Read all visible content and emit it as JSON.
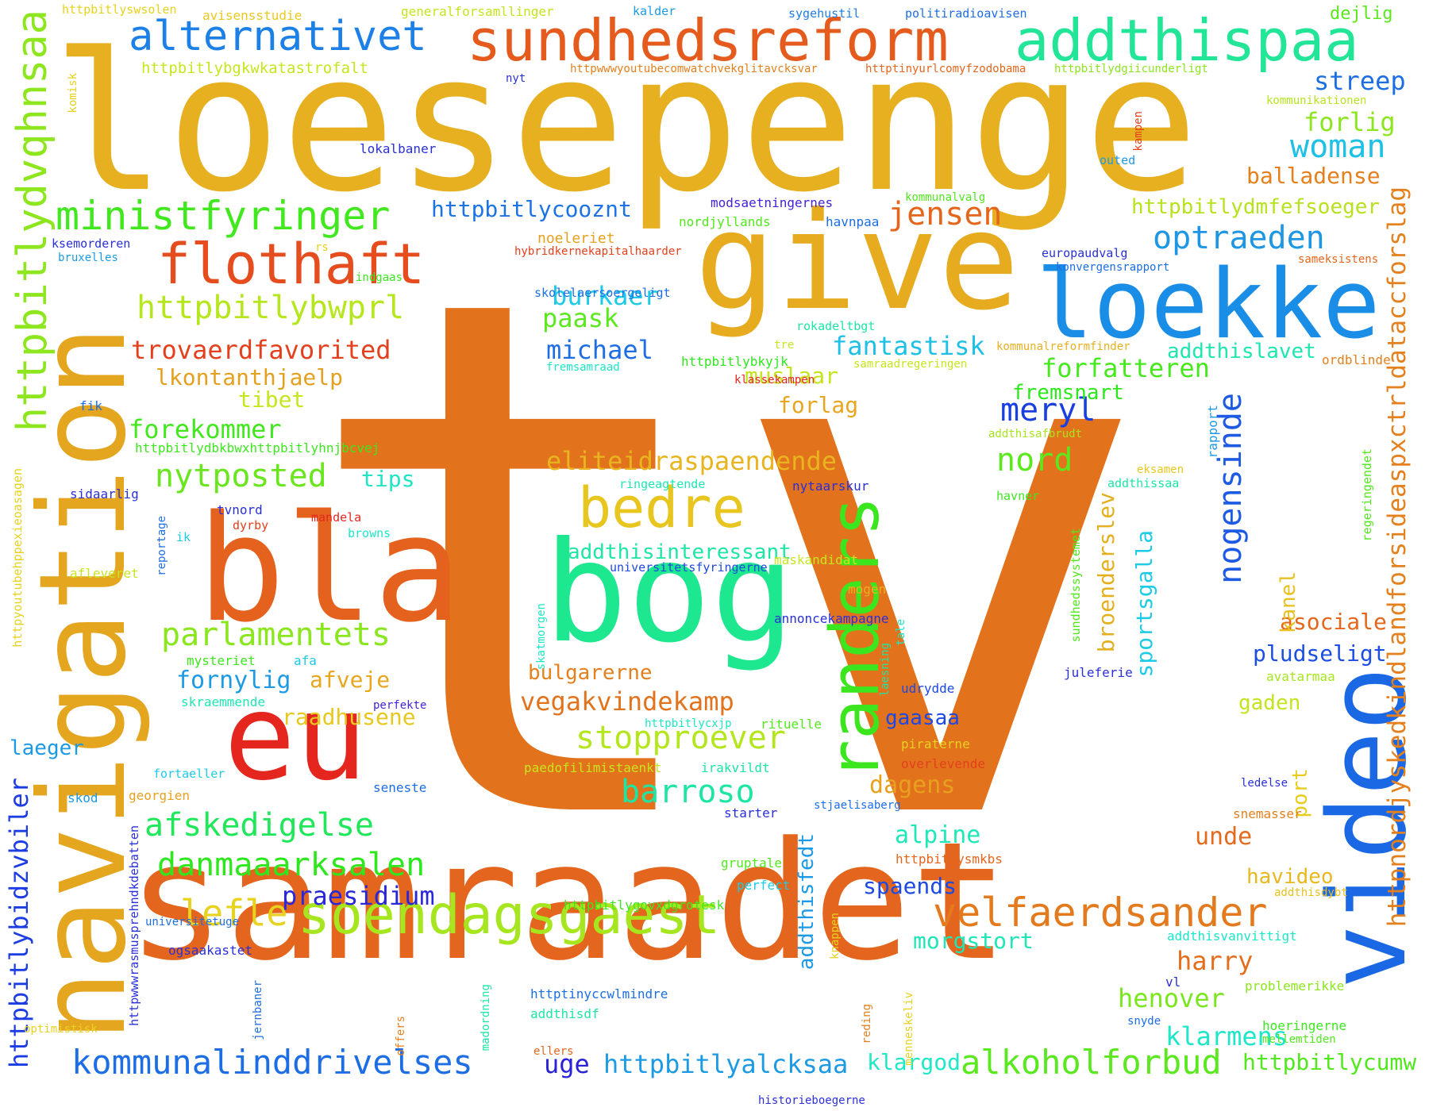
{
  "words": [
    {
      "text": "tv",
      "color": "#e2721c",
      "vertical": false
    },
    {
      "text": "loesepenge",
      "color": "#e6b020",
      "vertical": false
    },
    {
      "text": "samraadet",
      "color": "#e4651d",
      "vertical": false
    },
    {
      "text": "navigation",
      "color": "#e4a51f",
      "vertical": true
    },
    {
      "text": "video",
      "color": "#1a68e4",
      "vertical": true
    },
    {
      "text": "give",
      "color": "#e6ab1f",
      "vertical": false
    },
    {
      "text": "bog",
      "color": "#1ee88f",
      "vertical": false
    },
    {
      "text": "bla",
      "color": "#e4621d",
      "vertical": false
    },
    {
      "text": "eu",
      "color": "#e4261f",
      "vertical": false
    },
    {
      "text": "loekke",
      "color": "#1a8ee6",
      "vertical": false
    },
    {
      "text": "randers",
      "color": "#3ce61e",
      "vertical": true
    },
    {
      "text": "sundhedsreform",
      "color": "#e55b1e",
      "vertical": false
    },
    {
      "text": "addthispaa",
      "color": "#22e597",
      "vertical": false
    },
    {
      "text": "flothaft",
      "color": "#e54d1f",
      "vertical": false
    },
    {
      "text": "alternativet",
      "color": "#1d80e6",
      "vertical": false
    },
    {
      "text": "httpbitlydvqhnsaa",
      "color": "#8de61e",
      "vertical": true
    },
    {
      "text": "ministfyringer",
      "color": "#42e81e",
      "vertical": false
    },
    {
      "text": "soendagsgaest",
      "color": "#a6e61e",
      "vertical": false
    },
    {
      "text": "bedre",
      "color": "#e8c51f",
      "vertical": false
    },
    {
      "text": "velfaerdsander",
      "color": "#e37b1e",
      "vertical": false
    },
    {
      "text": "httpnordjyskedkindlandforsideaspxctrldataccforslag",
      "color": "#e4811e",
      "vertical": true
    },
    {
      "text": "alkoholforbud",
      "color": "#5ae81e",
      "vertical": false
    },
    {
      "text": "kommunalinddrivelses",
      "color": "#1d6ee4",
      "vertical": false
    },
    {
      "text": "httpbitlybwprl",
      "color": "#b6e61e",
      "vertical": false
    },
    {
      "text": "jensen",
      "color": "#e4661d",
      "vertical": false
    },
    {
      "text": "optraeden",
      "color": "#1d96e4",
      "vertical": false
    },
    {
      "text": "woman",
      "color": "#1ec0e6",
      "vertical": false
    },
    {
      "text": "parlamentets",
      "color": "#8ae61e",
      "vertical": false
    },
    {
      "text": "danmaaarksalen",
      "color": "#2ee81e",
      "vertical": false
    },
    {
      "text": "afskedigelse",
      "color": "#1ee85a",
      "vertical": false
    },
    {
      "text": "nytposted",
      "color": "#6ae61e",
      "vertical": false
    },
    {
      "text": "lefle",
      "color": "#e6d21f",
      "vertical": false
    },
    {
      "text": "trovaerdfavorited",
      "color": "#e4401d",
      "vertical": false
    },
    {
      "text": "httpbitlybidzvbiler",
      "color": "#1d3de4",
      "vertical": true
    },
    {
      "text": "stopproever",
      "color": "#b4e61e",
      "vertical": false
    },
    {
      "text": "barroso",
      "color": "#1ee6a2",
      "vertical": false
    },
    {
      "text": "meryl",
      "color": "#1a3fe0",
      "vertical": false
    },
    {
      "text": "nord",
      "color": "#5ce81e",
      "vertical": false
    },
    {
      "text": "nogensinde",
      "color": "#1d5be4",
      "vertical": true
    },
    {
      "text": "forfatteren",
      "color": "#46e81e",
      "vertical": false
    },
    {
      "text": "eliteidraspaendende",
      "color": "#e8b41f",
      "vertical": false
    },
    {
      "text": "vegakvindekamp",
      "color": "#e2731d",
      "vertical": false
    },
    {
      "text": "harry",
      "color": "#e56e1d",
      "vertical": false
    },
    {
      "text": "henover",
      "color": "#7ae61e",
      "vertical": false
    },
    {
      "text": "klarmens",
      "color": "#1ee6c8",
      "vertical": false
    },
    {
      "text": "praesidium",
      "color": "#2a27d9",
      "vertical": false
    },
    {
      "text": "httpbitlyalcksaa",
      "color": "#1d9ae4",
      "vertical": false
    },
    {
      "text": "httpbitlycumw",
      "color": "#52e81e",
      "vertical": false
    },
    {
      "text": "uge",
      "color": "#2922d8",
      "vertical": false
    },
    {
      "text": "klargod",
      "color": "#1ee8c8",
      "vertical": false
    },
    {
      "text": "httpbitlycooznt",
      "color": "#1d73e4",
      "vertical": false
    },
    {
      "text": "burkaer",
      "color": "#1ecbe6",
      "vertical": false
    },
    {
      "text": "paask",
      "color": "#5ce81e",
      "vertical": false
    },
    {
      "text": "michael",
      "color": "#1d6ee4",
      "vertical": false
    },
    {
      "text": "fantastisk",
      "color": "#1ec0e6",
      "vertical": false
    },
    {
      "text": "muslaar",
      "color": "#c4e41e",
      "vertical": false
    },
    {
      "text": "forlag",
      "color": "#e8a61f",
      "vertical": false
    },
    {
      "text": "fremsnart",
      "color": "#2ee81e",
      "vertical": false
    },
    {
      "text": "addthislavet",
      "color": "#1ee6b0",
      "vertical": false
    },
    {
      "text": "streep",
      "color": "#1d6ee4",
      "vertical": false
    },
    {
      "text": "forlig",
      "color": "#8ce61e",
      "vertical": false
    },
    {
      "text": "balladense",
      "color": "#e4801d",
      "vertical": false
    },
    {
      "text": "httpbitlydmfefsoeger",
      "color": "#b6e21e",
      "vertical": false
    },
    {
      "text": "forekommer",
      "color": "#42e81e",
      "vertical": false
    },
    {
      "text": "tibet",
      "color": "#c6e61e",
      "vertical": false
    },
    {
      "text": "lkontanthjaelp",
      "color": "#e4a01f",
      "vertical": false
    },
    {
      "text": "httpbitlydbkbwxhttpbitlyhnjbcvej",
      "color": "#3ce81e",
      "vertical": false
    },
    {
      "text": "tips",
      "color": "#1ee6c4",
      "vertical": false
    },
    {
      "text": "fornylig",
      "color": "#1d9ae4",
      "vertical": false
    },
    {
      "text": "afveje",
      "color": "#e8a61f",
      "vertical": false
    },
    {
      "text": "raadhusene",
      "color": "#e6c81f",
      "vertical": false
    },
    {
      "text": "addthisinteressant",
      "color": "#1ee6a4",
      "vertical": false
    },
    {
      "text": "bulgarerne",
      "color": "#e4801d",
      "vertical": false
    },
    {
      "text": "dagens",
      "color": "#e8a01f",
      "vertical": false
    },
    {
      "text": "alpine",
      "color": "#1ee8b8",
      "vertical": false
    },
    {
      "text": "spaends",
      "color": "#1d4ae4",
      "vertical": false
    },
    {
      "text": "morgstort",
      "color": "#1ee6b6",
      "vertical": false
    },
    {
      "text": "unde",
      "color": "#e46a1d",
      "vertical": false
    },
    {
      "text": "havideo",
      "color": "#e8b81f",
      "vertical": false
    },
    {
      "text": "asociale",
      "color": "#e4661d",
      "vertical": false
    },
    {
      "text": "pludseligt",
      "color": "#1d4ee4",
      "vertical": false
    },
    {
      "text": "gaden",
      "color": "#c4e41e",
      "vertical": false
    },
    {
      "text": "gaasaa",
      "color": "#1d48e4",
      "vertical": false
    },
    {
      "text": "addthisfedt",
      "color": "#1d9ae4",
      "vertical": true
    },
    {
      "text": "broenderslev",
      "color": "#e4b01f",
      "vertical": true
    },
    {
      "text": "sportsgalla",
      "color": "#1ecbe6",
      "vertical": true
    },
    {
      "text": "kanel",
      "color": "#e8c01f",
      "vertical": true
    },
    {
      "text": "port",
      "color": "#e8cc1f",
      "vertical": true
    },
    {
      "text": "laeger",
      "color": "#1d9ae4",
      "vertical": false
    },
    {
      "text": "httpbitlyswsolen",
      "color": "#e8d21f",
      "vertical": false
    },
    {
      "text": "avisensstudie",
      "color": "#e8c81f",
      "vertical": false
    },
    {
      "text": "generalforsamllinger",
      "color": "#c6e41e",
      "vertical": false
    },
    {
      "text": "kalder",
      "color": "#1d9ae4",
      "vertical": false
    },
    {
      "text": "sygehustil",
      "color": "#1d7ee4",
      "vertical": false
    },
    {
      "text": "politiradioavisen",
      "color": "#1d6ee4",
      "vertical": false
    },
    {
      "text": "dejlig",
      "color": "#5ce81e",
      "vertical": false
    },
    {
      "text": "httpbitlybgkwkatastrofalt",
      "color": "#c6e61e",
      "vertical": false
    },
    {
      "text": "httpwwwyoutubecomwatchvekglitavcksvar",
      "color": "#e4801d",
      "vertical": false
    },
    {
      "text": "httptinyurlcomyfzodobama",
      "color": "#e4661d",
      "vertical": false
    },
    {
      "text": "httpbitlydgiicunderligt",
      "color": "#8ce61e",
      "vertical": false
    },
    {
      "text": "nyt",
      "color": "#2a30d8",
      "vertical": false
    },
    {
      "text": "komisk",
      "color": "#e6d21f",
      "vertical": true
    },
    {
      "text": "kommunikationen",
      "color": "#b6e41e",
      "vertical": false
    },
    {
      "text": "lokalbaner",
      "color": "#2a30d8",
      "vertical": false
    },
    {
      "text": "kampen",
      "color": "#e4401d",
      "vertical": true
    },
    {
      "text": "outed",
      "color": "#1d9ae4",
      "vertical": false
    },
    {
      "text": "modsaetningernes",
      "color": "#4422d8",
      "vertical": false
    },
    {
      "text": "kommunalvalg",
      "color": "#52e81e",
      "vertical": false
    },
    {
      "text": "nordjyllands",
      "color": "#52e81e",
      "vertical": false
    },
    {
      "text": "havnpaa",
      "color": "#1d6ee4",
      "vertical": false
    },
    {
      "text": "noeleriet",
      "color": "#e8a01f",
      "vertical": false
    },
    {
      "text": "hybridkernekapitalhaarder",
      "color": "#e4401d",
      "vertical": false
    },
    {
      "text": "europaudvalg",
      "color": "#2a30d8",
      "vertical": false
    },
    {
      "text": "konvergensrapport",
      "color": "#1d6ee4",
      "vertical": false
    },
    {
      "text": "sameksistens",
      "color": "#e4661d",
      "vertical": false
    },
    {
      "text": "ksemorderen",
      "color": "#2a30d8",
      "vertical": false
    },
    {
      "text": "rs",
      "color": "#e6d21f",
      "vertical": false
    },
    {
      "text": "bruxelles",
      "color": "#1d9ae4",
      "vertical": false
    },
    {
      "text": "skolelaersoergeligt",
      "color": "#1d6ee4",
      "vertical": false
    },
    {
      "text": "indgaas",
      "color": "#3ce81e",
      "vertical": false
    },
    {
      "text": "rokadeltbgt",
      "color": "#1ee6a4",
      "vertical": false
    },
    {
      "text": "tre",
      "color": "#c6e61e",
      "vertical": false
    },
    {
      "text": "kommunalreformfinder",
      "color": "#e8b01f",
      "vertical": false
    },
    {
      "text": "httpbitlybkyjk",
      "color": "#2ee81e",
      "vertical": false
    },
    {
      "text": "fremsamraad",
      "color": "#1ee6c8",
      "vertical": false
    },
    {
      "text": "samraadregeringen",
      "color": "#c6e61e",
      "vertical": false
    },
    {
      "text": "klassekampen",
      "color": "#e4261f",
      "vertical": false
    },
    {
      "text": "ordblinde",
      "color": "#e4801d",
      "vertical": false
    },
    {
      "text": "fik",
      "color": "#1d6ee4",
      "vertical": false
    },
    {
      "text": "addthisafbrudt",
      "color": "#a6e61e",
      "vertical": false
    },
    {
      "text": "rapport",
      "color": "#1d9ae4",
      "vertical": true
    },
    {
      "text": "eksamen",
      "color": "#e8c81f",
      "vertical": false
    },
    {
      "text": "regeringendet",
      "color": "#52e81e",
      "vertical": true
    },
    {
      "text": "ringeagtende",
      "color": "#1ee6b6",
      "vertical": false
    },
    {
      "text": "addthissaa",
      "color": "#1ee6a4",
      "vertical": false
    },
    {
      "text": "httpyoutubehppexieoasagen",
      "color": "#e6d21f",
      "vertical": true
    },
    {
      "text": "sidaarlig",
      "color": "#2a30d8",
      "vertical": false
    },
    {
      "text": "tvnord",
      "color": "#2a30d8",
      "vertical": false
    },
    {
      "text": "dyrby",
      "color": "#e4401d",
      "vertical": false
    },
    {
      "text": "mandela",
      "color": "#e4261f",
      "vertical": false
    },
    {
      "text": "nytaarskur",
      "color": "#2a30d8",
      "vertical": false
    },
    {
      "text": "havner",
      "color": "#3ce81e",
      "vertical": false
    },
    {
      "text": "sundhedssystemet",
      "color": "#52e81e",
      "vertical": true
    },
    {
      "text": "reportage",
      "color": "#1d6ee4",
      "vertical": true
    },
    {
      "text": "ik",
      "color": "#1ecbe6",
      "vertical": false
    },
    {
      "text": "browns",
      "color": "#1ee6c8",
      "vertical": false
    },
    {
      "text": "universitetsfyringerne",
      "color": "#1d48e4",
      "vertical": false
    },
    {
      "text": "maskandidat",
      "color": "#c6e61e",
      "vertical": false
    },
    {
      "text": "afleveret",
      "color": "#c6e61e",
      "vertical": false
    },
    {
      "text": "mogen",
      "color": "#e8b01f",
      "vertical": false
    },
    {
      "text": "annoncekampagne",
      "color": "#2a30d8",
      "vertical": false
    },
    {
      "text": "skatmorgen",
      "color": "#1ee6c4",
      "vertical": true
    },
    {
      "text": "laesning",
      "color": "#1ee6a4",
      "vertical": true
    },
    {
      "text": "tale",
      "color": "#1ee6c4",
      "vertical": true
    },
    {
      "text": "mysteriet",
      "color": "#3ce81e",
      "vertical": false
    },
    {
      "text": "afa",
      "color": "#1ecbe6",
      "vertical": false
    },
    {
      "text": "skraemmende",
      "color": "#1ee6b6",
      "vertical": false
    },
    {
      "text": "perfekte",
      "color": "#4422d8",
      "vertical": false
    },
    {
      "text": "udrydde",
      "color": "#1d48e4",
      "vertical": false
    },
    {
      "text": "juleferie",
      "color": "#2a30d8",
      "vertical": false
    },
    {
      "text": "avatarmaa",
      "color": "#a6e61e",
      "vertical": false
    },
    {
      "text": "httpbitlycxjp",
      "color": "#1ee6c8",
      "vertical": false
    },
    {
      "text": "rituelle",
      "color": "#52e81e",
      "vertical": false
    },
    {
      "text": "piraterne",
      "color": "#e6d21f",
      "vertical": false
    },
    {
      "text": "overlevende",
      "color": "#e4401d",
      "vertical": false
    },
    {
      "text": "fortaeller",
      "color": "#1ecbe6",
      "vertical": false
    },
    {
      "text": "paedofilimistaenkt",
      "color": "#c6e61e",
      "vertical": false
    },
    {
      "text": "irakvildt",
      "color": "#1ee6a4",
      "vertical": false
    },
    {
      "text": "seneste",
      "color": "#1d6ee4",
      "vertical": false
    },
    {
      "text": "ledelse",
      "color": "#2a30d8",
      "vertical": false
    },
    {
      "text": "skod",
      "color": "#1d9ae4",
      "vertical": false
    },
    {
      "text": "georgien",
      "color": "#e8a01f",
      "vertical": false
    },
    {
      "text": "httpwwwrasmusprehndkdebatten",
      "color": "#2a30d8",
      "vertical": true
    },
    {
      "text": "starter",
      "color": "#2a30d8",
      "vertical": false
    },
    {
      "text": "stjaelisaberg",
      "color": "#1d6ee4",
      "vertical": false
    },
    {
      "text": "snemasser",
      "color": "#e4801d",
      "vertical": false
    },
    {
      "text": "httpbitlysmkbs",
      "color": "#e4661d",
      "vertical": false
    },
    {
      "text": "gruptale",
      "color": "#52e81e",
      "vertical": false
    },
    {
      "text": "perfect",
      "color": "#1ecbe6",
      "vertical": false
    },
    {
      "text": "addthisdybt",
      "color": "#e8c01f",
      "vertical": false
    },
    {
      "text": "httpbitlygovxdgrotesk",
      "color": "#3ce81e",
      "vertical": false
    },
    {
      "text": "knappen",
      "color": "#e6d21f",
      "vertical": true
    },
    {
      "text": "universitetuge",
      "color": "#1d6ee4",
      "vertical": false
    },
    {
      "text": "addthisvanvittigt",
      "color": "#1ee6c8",
      "vertical": false
    },
    {
      "text": "ogsaakastet",
      "color": "#2a30d8",
      "vertical": false
    },
    {
      "text": "jernbaner",
      "color": "#1d6ee4",
      "vertical": true
    },
    {
      "text": "madordning",
      "color": "#1ee6a4",
      "vertical": true
    },
    {
      "text": "httptinyccwlmindre",
      "color": "#1d6ee4",
      "vertical": false
    },
    {
      "text": "addthisdf",
      "color": "#1ee6a4",
      "vertical": false
    },
    {
      "text": "offers",
      "color": "#e4801d",
      "vertical": true
    },
    {
      "text": "reding",
      "color": "#e4801d",
      "vertical": true
    },
    {
      "text": "menneskeliv",
      "color": "#e6d21f",
      "vertical": true
    },
    {
      "text": "vl",
      "color": "#2a30d8",
      "vertical": false
    },
    {
      "text": "problemerikke",
      "color": "#8ce61e",
      "vertical": false
    },
    {
      "text": "hoeringerne",
      "color": "#3ce81e",
      "vertical": false
    },
    {
      "text": "snyde",
      "color": "#1d6ee4",
      "vertical": false
    },
    {
      "text": "mellemtiden",
      "color": "#52e81e",
      "vertical": false
    },
    {
      "text": "optimistisk",
      "color": "#e6d21f",
      "vertical": false
    },
    {
      "text": "ellers",
      "color": "#e4661d",
      "vertical": false
    },
    {
      "text": "historieboegerne",
      "color": "#2a30d8",
      "vertical": false
    }
  ]
}
